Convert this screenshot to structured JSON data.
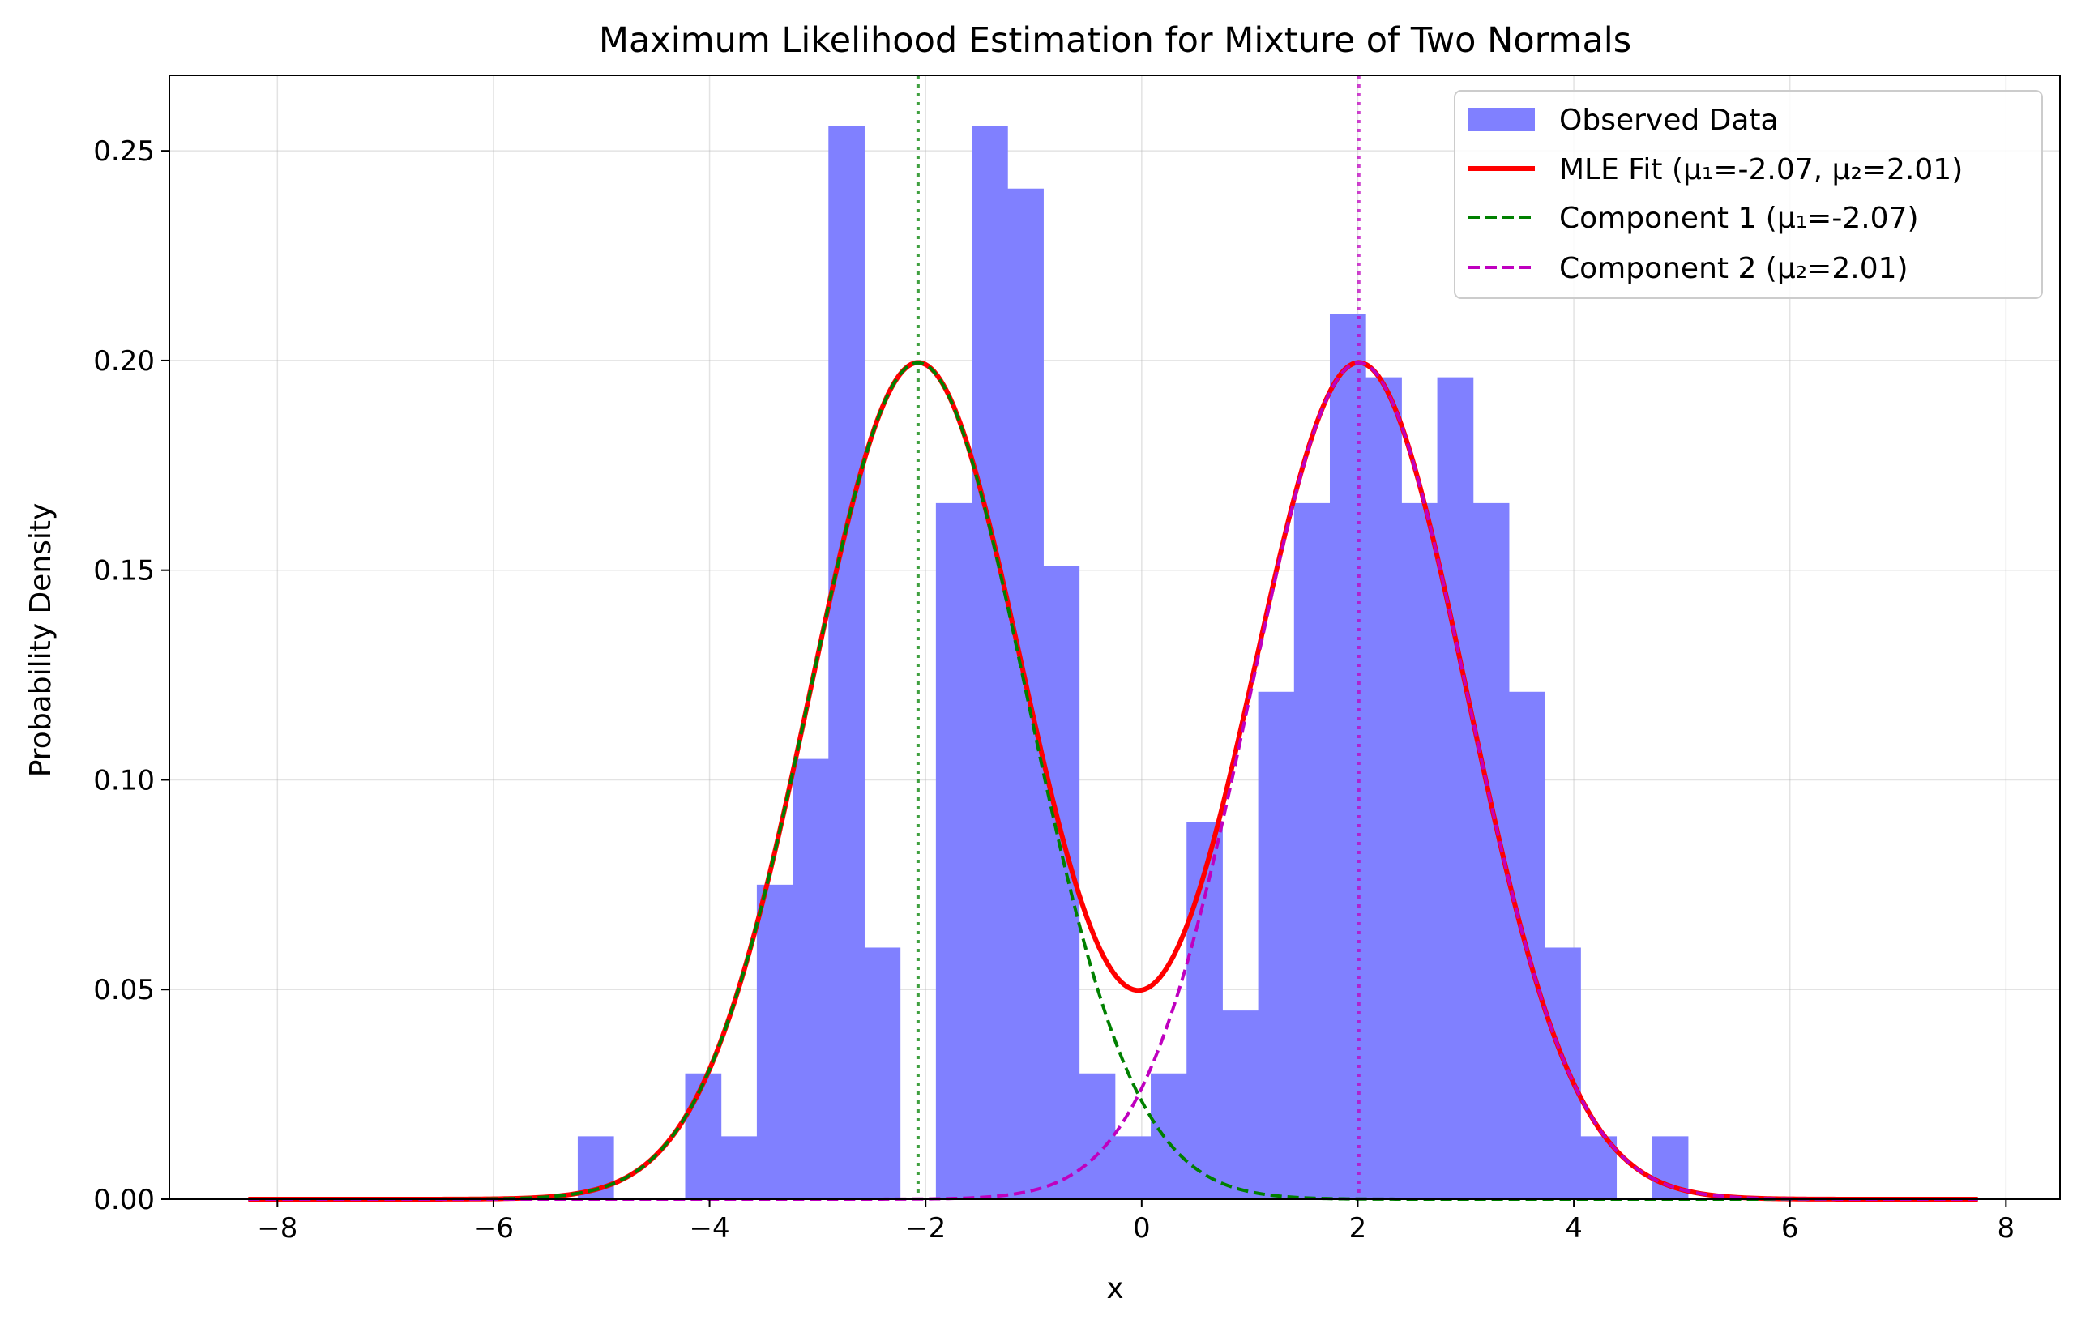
{
  "chart_data": {
    "type": "histogram+line",
    "title": "Maximum Likelihood Estimation for Mixture of Two Normals",
    "xlabel": "x",
    "ylabel": "Probability Density",
    "xlim": [
      -9.0,
      8.5
    ],
    "ylim": [
      0.0,
      0.268
    ],
    "grid": true,
    "legend_position": "top-right",
    "x_ticks": [
      -8,
      -6,
      -4,
      -2,
      0,
      2,
      4,
      6,
      8
    ],
    "x_tick_labels": [
      "−8",
      "−6",
      "−4",
      "−2",
      "0",
      "2",
      "4",
      "6",
      "8"
    ],
    "y_ticks": [
      0.0,
      0.05,
      0.1,
      0.15,
      0.2,
      0.25
    ],
    "y_tick_labels": [
      "0.00",
      "0.05",
      "0.10",
      "0.15",
      "0.20",
      "0.25"
    ],
    "histogram": {
      "name": "Observed Data",
      "color": "#8080ff",
      "bin_start": -5.22,
      "bin_width": 0.3315,
      "densities": [
        0.015,
        0.0,
        0.0,
        0.03,
        0.015,
        0.075,
        0.105,
        0.256,
        0.06,
        0.0,
        0.166,
        0.256,
        0.241,
        0.151,
        0.03,
        0.015,
        0.03,
        0.09,
        0.045,
        0.121,
        0.166,
        0.211,
        0.196,
        0.166,
        0.196,
        0.166,
        0.121,
        0.06,
        0.015,
        0.0,
        0.015
      ]
    },
    "series": [
      {
        "name": "MLE Fit (μ₁=-2.07, μ₂=2.01)",
        "kind": "mixture",
        "color": "#ff0000",
        "style": "solid",
        "x_range": [
          -8.27,
          7.74
        ],
        "mu1": -2.07,
        "sigma1": 1.0,
        "mu2": 2.01,
        "sigma2": 1.0,
        "weight1": 0.5
      },
      {
        "name": "Component 1 (μ₁=-2.07)",
        "kind": "component",
        "color": "#008000",
        "style": "dashed",
        "x_range": [
          -8.27,
          7.74
        ],
        "mu": -2.07,
        "sigma": 1.0,
        "weight": 0.5
      },
      {
        "name": "Component 2 (μ₂=2.01)",
        "kind": "component",
        "color": "#bf00bf",
        "style": "dashed",
        "x_range": [
          -8.27,
          7.74
        ],
        "mu": 2.01,
        "sigma": 1.0,
        "weight": 0.5
      }
    ],
    "vertical_lines": [
      {
        "x": -2.07,
        "color": "#008000",
        "style": "dotted"
      },
      {
        "x": 2.01,
        "color": "#bf00bf",
        "style": "dotted"
      }
    ]
  }
}
